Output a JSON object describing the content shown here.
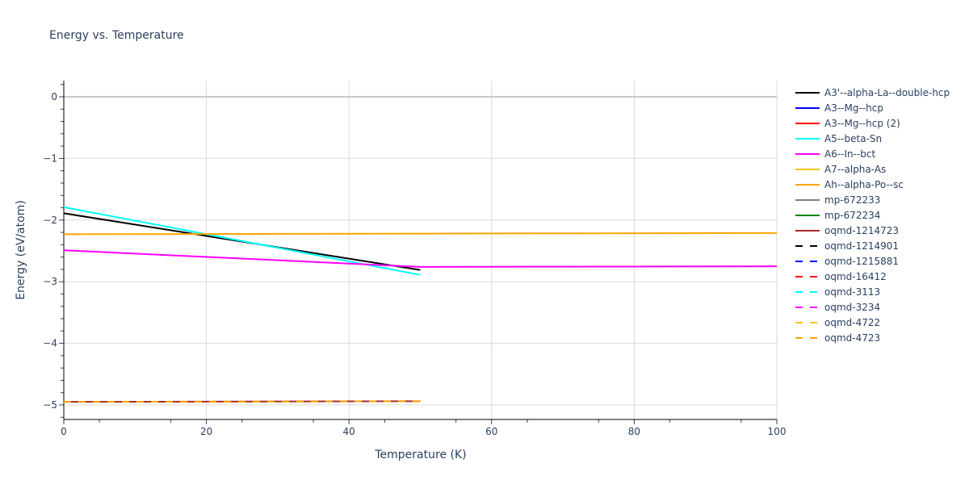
{
  "chart_data": {
    "type": "line",
    "title": "Energy vs. Temperature",
    "xlabel": "Temperature (K)",
    "ylabel": "Energy (eV/atom)",
    "xlim": [
      0,
      100
    ],
    "ylim": [
      -5.25,
      0.25
    ],
    "x_ticks": [
      0,
      20,
      40,
      60,
      80,
      100
    ],
    "y_ticks": [
      0,
      -1,
      -2,
      -3,
      -4,
      -5
    ],
    "grid": true,
    "legend_position": "right",
    "series": [
      {
        "name": "A3'--alpha-La--double-hcp",
        "color": "#000000",
        "dash": "solid",
        "x": [
          0,
          50
        ],
        "y": [
          -1.89,
          -2.81
        ]
      },
      {
        "name": "A3--Mg--hcp",
        "color": "#0000ff",
        "dash": "solid",
        "x": [],
        "y": []
      },
      {
        "name": "A3--Mg--hcp (2)",
        "color": "#ff0000",
        "dash": "solid",
        "x": [],
        "y": []
      },
      {
        "name": "A5--beta-Sn",
        "color": "#00ffff",
        "dash": "solid",
        "x": [
          0,
          50
        ],
        "y": [
          -1.79,
          -2.89
        ]
      },
      {
        "name": "A6--In--bct",
        "color": "#ff00ff",
        "dash": "solid",
        "x": [
          0,
          50,
          100
        ],
        "y": [
          -2.49,
          -2.76,
          -2.75
        ]
      },
      {
        "name": "A7--alpha-As",
        "color": "#f5c518",
        "dash": "solid",
        "x": [],
        "y": []
      },
      {
        "name": "Ah--alpha-Po--sc",
        "color": "#ffa500",
        "dash": "solid",
        "x": [
          0,
          100
        ],
        "y": [
          -2.23,
          -2.21
        ]
      },
      {
        "name": "mp-672233",
        "color": "#808080",
        "dash": "solid",
        "x": [],
        "y": []
      },
      {
        "name": "mp-672234",
        "color": "#008000",
        "dash": "solid",
        "x": [],
        "y": []
      },
      {
        "name": "oqmd-1214723",
        "color": "#a52a2a",
        "dash": "solid",
        "x": [
          0,
          50
        ],
        "y": [
          -4.95,
          -4.94
        ]
      },
      {
        "name": "oqmd-1214901",
        "color": "#000000",
        "dash": "dash",
        "x": [],
        "y": []
      },
      {
        "name": "oqmd-1215881",
        "color": "#0000ff",
        "dash": "dash",
        "x": [],
        "y": []
      },
      {
        "name": "oqmd-16412",
        "color": "#ff0000",
        "dash": "dash",
        "x": [],
        "y": []
      },
      {
        "name": "oqmd-3113",
        "color": "#00ffff",
        "dash": "dash",
        "x": [],
        "y": []
      },
      {
        "name": "oqmd-3234",
        "color": "#ff00ff",
        "dash": "dash",
        "x": [],
        "y": []
      },
      {
        "name": "oqmd-4722",
        "color": "#f5c518",
        "dash": "dash",
        "x": [],
        "y": []
      },
      {
        "name": "oqmd-4723",
        "color": "#ffa500",
        "dash": "dash",
        "x": [
          0,
          50
        ],
        "y": [
          -4.95,
          -4.94
        ]
      }
    ]
  }
}
